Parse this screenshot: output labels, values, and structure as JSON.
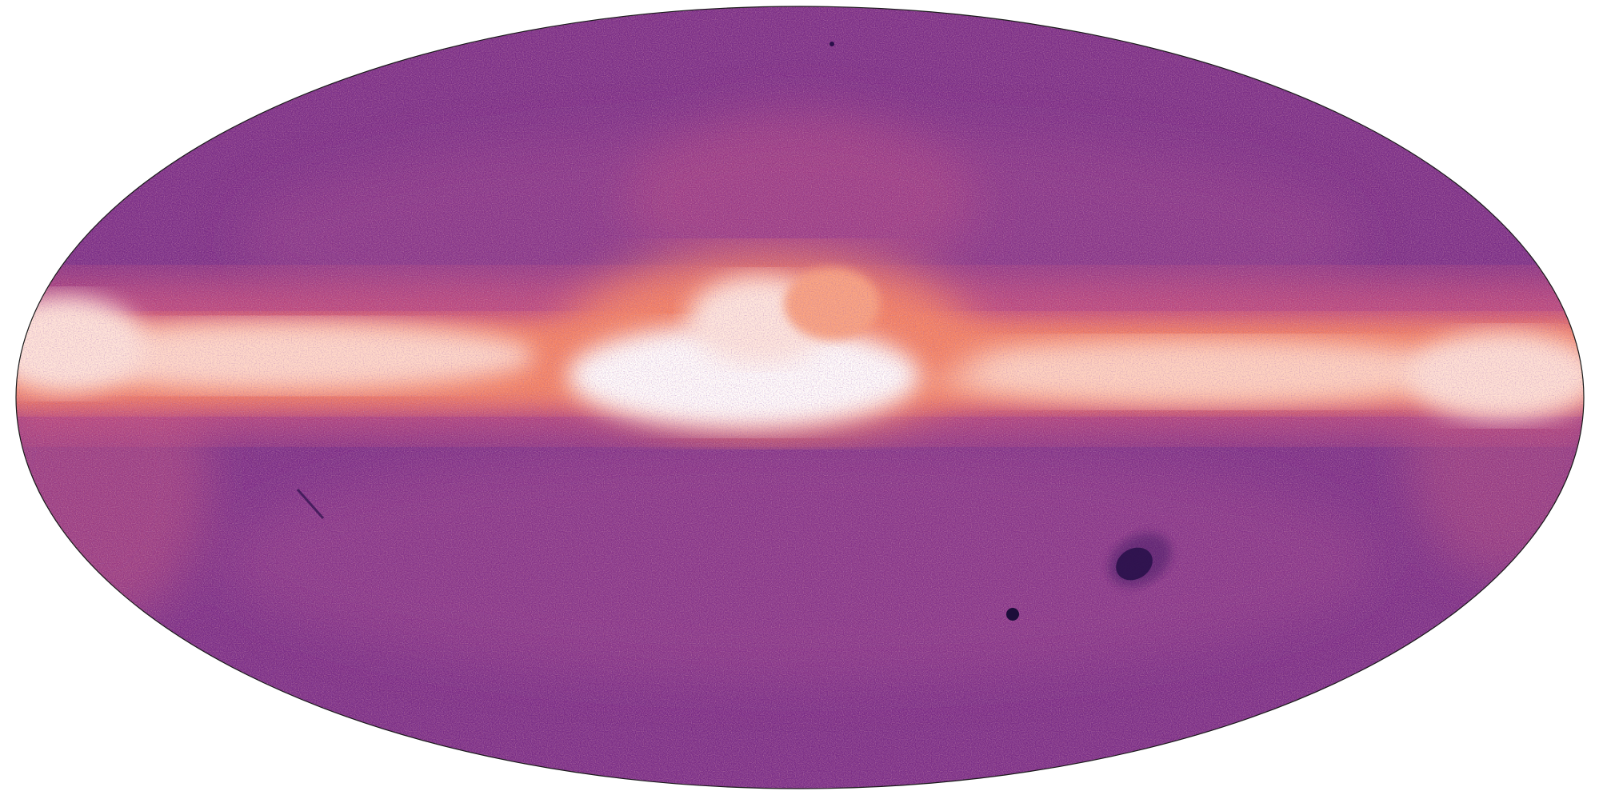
{
  "map": {
    "projection": "mollweide",
    "colormap": "magma",
    "colors": {
      "background": "#ffffff",
      "outline": "#1a1a1a",
      "low_density": "#4a1a6e",
      "base_density": "#7a2d85",
      "mid_density": "#c0487a",
      "high_density": "#f4805f",
      "saturated": "#ffffff",
      "underdense_feature": "#1c0d3a"
    },
    "features": [
      {
        "name": "galactic-plane-band",
        "kind": "overdensity"
      },
      {
        "name": "galactic-bulge",
        "kind": "saturated"
      },
      {
        "name": "large-magellanic-cloud",
        "kind": "underdensity"
      },
      {
        "name": "small-magellanic-cloud",
        "kind": "underdensity"
      },
      {
        "name": "scan-artifact-streak",
        "kind": "underdensity"
      }
    ]
  }
}
